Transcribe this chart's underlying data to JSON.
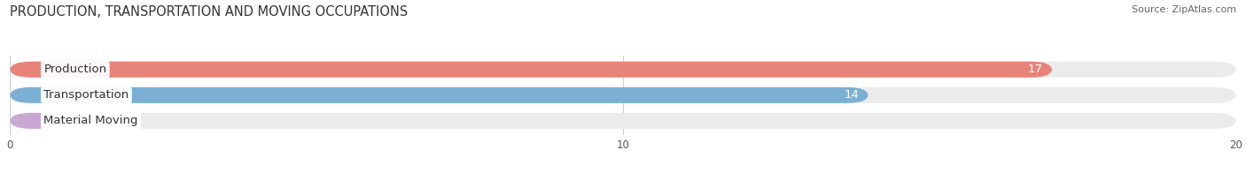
{
  "title": "PRODUCTION, TRANSPORTATION AND MOVING OCCUPATIONS",
  "source": "Source: ZipAtlas.com",
  "categories": [
    "Production",
    "Transportation",
    "Material Moving"
  ],
  "values": [
    17,
    14,
    0
  ],
  "bar_colors": [
    "#E8837A",
    "#7BAFD4",
    "#C9A8D4"
  ],
  "bar_bg_color": "#EBEBEB",
  "xlim": [
    0,
    20
  ],
  "xticks": [
    0,
    10,
    20
  ],
  "figsize": [
    14.06,
    1.96
  ],
  "dpi": 100,
  "title_fontsize": 10.5,
  "label_fontsize": 9.5,
  "value_fontsize": 9.5,
  "bar_height": 0.62,
  "background_color": "#FFFFFF",
  "label_box_color": "#FFFFFF",
  "source_fontsize": 8
}
